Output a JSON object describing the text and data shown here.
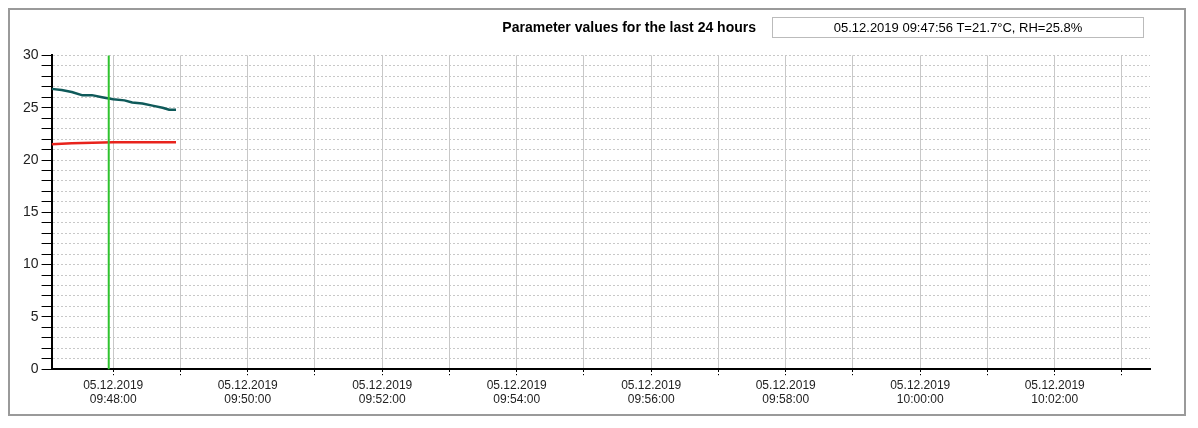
{
  "chart_data": {
    "type": "line",
    "title": "Parameter values for the last 24 hours",
    "annotations": [
      "05.12.2019  09:47:56  T=21.7°C,  RH=25.8%"
    ],
    "x": [
      "2019-12-05T09:47:05",
      "2019-12-05T09:47:14",
      "2019-12-05T09:47:23",
      "2019-12-05T09:47:32",
      "2019-12-05T09:47:41",
      "2019-12-05T09:47:50",
      "2019-12-05T09:48:00",
      "2019-12-05T09:48:10",
      "2019-12-05T09:48:17",
      "2019-12-05T09:48:26",
      "2019-12-05T09:48:35",
      "2019-12-05T09:48:44",
      "2019-12-05T09:48:50",
      "2019-12-05T09:48:56"
    ],
    "series": [
      {
        "color": "#0f5a5a",
        "values": [
          26.8,
          26.7,
          26.5,
          26.2,
          26.2,
          26.0,
          25.8,
          25.7,
          25.5,
          25.4,
          25.2,
          25.0,
          24.8,
          24.8
        ]
      },
      {
        "color": "#e8231c",
        "x": [
          "2019-12-05T09:47:05",
          "2019-12-05T09:47:23",
          "2019-12-05T09:48:00",
          "2019-12-05T09:48:56"
        ],
        "values": [
          21.5,
          21.6,
          21.7,
          21.7
        ]
      }
    ],
    "xlim": [
      "2019-12-05T09:47:05",
      "2019-12-05T10:03:25"
    ],
    "xticks": [
      {
        "value": "2019-12-05T09:48",
        "label": "05.12.2019 09:48:00"
      },
      {
        "value": "2019-12-05T09:49",
        "label": null
      },
      {
        "value": "2019-12-05T09:50",
        "label": "05.12.2019 09:50:00"
      },
      {
        "value": "2019-12-05T09:51",
        "label": null
      },
      {
        "value": "2019-12-05T09:52",
        "label": "05.12.2019 09:52:00"
      },
      {
        "value": "2019-12-05T09:53",
        "label": null
      },
      {
        "value": "2019-12-05T09:54",
        "label": "05.12.2019 09:54:00"
      },
      {
        "value": "2019-12-05T09:55",
        "label": null
      },
      {
        "value": "2019-12-05T09:56",
        "label": "05.12.2019 09:56:00"
      },
      {
        "value": "2019-12-05T09:57",
        "label": null
      },
      {
        "value": "2019-12-05T09:58",
        "label": "05.12.2019 09:58:00"
      },
      {
        "value": "2019-12-05T09:59",
        "label": null
      },
      {
        "value": "2019-12-05T10:00",
        "label": "05.12.2019 10:00:00"
      },
      {
        "value": "2019-12-05T10:01",
        "label": null
      },
      {
        "value": "2019-12-05T10:02",
        "label": "05.12.2019 10:02:00"
      },
      {
        "value": "2019-12-05T10:03",
        "label": null
      }
    ],
    "ylim": [
      0,
      30
    ],
    "yticks": [
      0,
      {
        "value": 1,
        "label": null
      },
      {
        "value": 2,
        "label": null
      },
      {
        "value": 3,
        "label": null
      },
      {
        "value": 4,
        "label": null
      },
      5,
      {
        "value": 6,
        "label": null
      },
      {
        "value": 7,
        "label": null
      },
      {
        "value": 8,
        "label": null
      },
      {
        "value": 9,
        "label": null
      },
      10,
      {
        "value": 11,
        "label": null
      },
      {
        "value": 12,
        "label": null
      },
      {
        "value": 13,
        "label": null
      },
      {
        "value": 14,
        "label": null
      },
      15,
      {
        "value": 16,
        "label": null
      },
      {
        "value": 17,
        "label": null
      },
      {
        "value": 18,
        "label": null
      },
      {
        "value": 19,
        "label": null
      },
      20,
      {
        "value": 21,
        "label": null
      },
      {
        "value": 22,
        "label": null
      },
      {
        "value": 23,
        "label": null
      },
      {
        "value": 24,
        "label": null
      },
      25,
      {
        "value": 26,
        "label": null
      },
      {
        "value": 27,
        "label": null
      },
      {
        "value": 28,
        "label": null
      },
      {
        "value": 29,
        "label": null
      },
      30
    ],
    "ref_lines": [
      {
        "axis": "x",
        "value": "2019-12-05T09:47:56",
        "color": "#2ec22e"
      }
    ],
    "grid": true,
    "legend": false,
    "marker": "none",
    "line_style": "solid"
  }
}
